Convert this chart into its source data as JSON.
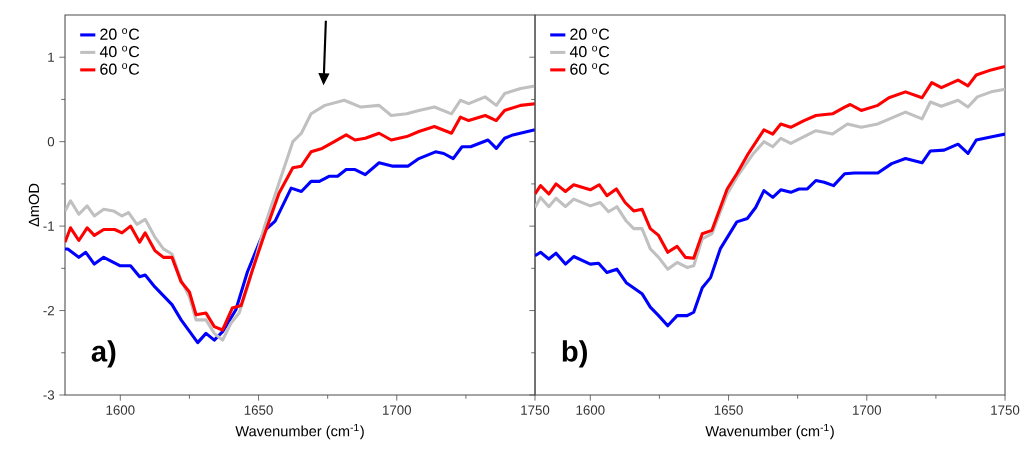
{
  "chart_data": [
    {
      "type": "line",
      "xlabel": "Wavenumber (cm$^{-1}$)",
      "ylabel": "ΔmOD",
      "xlim": [
        1580,
        1750
      ],
      "ylim": [
        -3,
        1.5
      ],
      "xticks": [
        1600,
        1650,
        1700,
        1750
      ],
      "yticks": [
        -3,
        -2,
        -1,
        0,
        1
      ],
      "legend": "top left",
      "annotations": [
        "a)"
      ],
      "series": [
        {
          "name": "20 $^{o}$C",
          "color": "#0000ff",
          "x": [
            1580,
            1581,
            1585,
            1587.5,
            1590.6,
            1594,
            1600,
            1603.7,
            1607,
            1609,
            1612.5,
            1618.7,
            1622,
            1628,
            1631,
            1634,
            1637,
            1641.8,
            1646,
            1652,
            1656,
            1661.8,
            1665.5,
            1669,
            1672,
            1675.5,
            1678.6,
            1681.7,
            1684.9,
            1688.6,
            1693.6,
            1698.6,
            1704,
            1708,
            1714,
            1717,
            1720.4,
            1723.6,
            1726.7,
            1733,
            1736,
            1739,
            1742,
            1750
          ],
          "values": [
            -1.27,
            -1.27,
            -1.37,
            -1.31,
            -1.45,
            -1.37,
            -1.47,
            -1.47,
            -1.6,
            -1.58,
            -1.72,
            -1.93,
            -2.11,
            -2.38,
            -2.27,
            -2.35,
            -2.25,
            -1.99,
            -1.54,
            -1.06,
            -0.94,
            -0.55,
            -0.59,
            -0.47,
            -0.47,
            -0.41,
            -0.41,
            -0.33,
            -0.33,
            -0.39,
            -0.25,
            -0.29,
            -0.29,
            -0.2,
            -0.12,
            -0.14,
            -0.2,
            -0.06,
            -0.06,
            0.02,
            -0.08,
            0.04,
            0.08,
            0.14
          ]
        },
        {
          "name": "40 $^{o}$C",
          "color": "#c0c0c0",
          "x": [
            1580,
            1582,
            1585,
            1588,
            1590.6,
            1594,
            1597.5,
            1600.6,
            1603,
            1606,
            1609,
            1612.5,
            1615.6,
            1618.7,
            1622,
            1625,
            1627.4,
            1631,
            1634,
            1637,
            1640,
            1643,
            1646.8,
            1652,
            1657.4,
            1662.4,
            1665.5,
            1669,
            1674,
            1681,
            1687,
            1693.6,
            1698,
            1703.6,
            1708,
            1713.6,
            1719.8,
            1723,
            1726,
            1732,
            1736,
            1739,
            1744.8,
            1750
          ],
          "values": [
            -0.82,
            -0.7,
            -0.86,
            -0.76,
            -0.88,
            -0.8,
            -0.82,
            -0.88,
            -0.84,
            -0.98,
            -0.92,
            -1.13,
            -1.27,
            -1.33,
            -1.64,
            -1.84,
            -2.11,
            -2.11,
            -2.27,
            -2.35,
            -2.15,
            -2.03,
            -1.64,
            -1.02,
            -0.49,
            0.0,
            0.1,
            0.33,
            0.43,
            0.49,
            0.41,
            0.43,
            0.31,
            0.33,
            0.37,
            0.41,
            0.33,
            0.49,
            0.45,
            0.53,
            0.43,
            0.57,
            0.63,
            0.66
          ]
        },
        {
          "name": "60 $^{o}$C",
          "color": "#ff0000",
          "x": [
            1580,
            1582,
            1585,
            1588,
            1590.6,
            1594,
            1598,
            1600.6,
            1603.7,
            1607,
            1609,
            1612.5,
            1615.6,
            1618.7,
            1622,
            1625,
            1627.4,
            1631,
            1634,
            1637,
            1640.5,
            1643.7,
            1647.4,
            1652,
            1657.4,
            1662.4,
            1665.5,
            1669,
            1673,
            1677.4,
            1681.7,
            1684.9,
            1688.6,
            1693.6,
            1698,
            1703.6,
            1708,
            1713.6,
            1719.8,
            1723,
            1726,
            1732,
            1736,
            1739,
            1744.8,
            1750
          ],
          "values": [
            -1.19,
            -1.02,
            -1.17,
            -1.02,
            -1.11,
            -1.04,
            -1.04,
            -1.08,
            -1.0,
            -1.19,
            -1.08,
            -1.29,
            -1.37,
            -1.37,
            -1.66,
            -1.78,
            -2.05,
            -2.03,
            -2.19,
            -2.23,
            -1.97,
            -1.94,
            -1.56,
            -1.11,
            -0.61,
            -0.31,
            -0.29,
            -0.12,
            -0.08,
            0.0,
            0.08,
            0.02,
            0.04,
            0.1,
            0.02,
            0.06,
            0.12,
            0.18,
            0.1,
            0.29,
            0.25,
            0.31,
            0.25,
            0.37,
            0.43,
            0.45
          ]
        }
      ]
    },
    {
      "type": "line",
      "xlabel": "Wavenumber (cm$^{-1}$)",
      "xlim": [
        1580,
        1750
      ],
      "ylim": [
        -3,
        1.5
      ],
      "xticks": [
        1600,
        1650,
        1700,
        1750
      ],
      "yticks": [
        -3,
        -2,
        -1,
        0,
        1
      ],
      "tick_labels": "x",
      "legend": "top left",
      "annotations": [
        "b)"
      ],
      "series": [
        {
          "name": "20 $^{o}$C",
          "color": "#0000ff",
          "x": [
            1580,
            1582,
            1585,
            1587.6,
            1591,
            1594,
            1600,
            1603,
            1606,
            1609.6,
            1613,
            1618.7,
            1621.7,
            1624.7,
            1628,
            1631.4,
            1635,
            1637.4,
            1640.5,
            1643.5,
            1647,
            1653,
            1656.8,
            1659.8,
            1662.8,
            1666,
            1668.9,
            1672.5,
            1675.5,
            1678.5,
            1681.6,
            1684.6,
            1688,
            1692,
            1695.5,
            1704,
            1709,
            1714,
            1720,
            1723,
            1728,
            1733,
            1736.6,
            1739.6,
            1745.7,
            1750
          ],
          "values": [
            -1.35,
            -1.31,
            -1.39,
            -1.32,
            -1.45,
            -1.36,
            -1.45,
            -1.44,
            -1.55,
            -1.51,
            -1.67,
            -1.8,
            -1.96,
            -2.06,
            -2.18,
            -2.06,
            -2.06,
            -2.02,
            -1.73,
            -1.61,
            -1.27,
            -0.95,
            -0.91,
            -0.78,
            -0.58,
            -0.66,
            -0.57,
            -0.6,
            -0.56,
            -0.56,
            -0.46,
            -0.48,
            -0.52,
            -0.38,
            -0.37,
            -0.37,
            -0.26,
            -0.2,
            -0.25,
            -0.11,
            -0.1,
            -0.03,
            -0.14,
            0.02,
            0.06,
            0.09
          ]
        },
        {
          "name": "40 $^{o}$C",
          "color": "#c0c0c0",
          "x": [
            1580,
            1582,
            1585,
            1587.6,
            1591,
            1594,
            1600,
            1603.6,
            1606.6,
            1609.6,
            1613,
            1615.7,
            1618.7,
            1621.7,
            1624.7,
            1628,
            1631.4,
            1635,
            1637.4,
            1640.5,
            1644,
            1649.5,
            1653,
            1659,
            1662.8,
            1666,
            1668.9,
            1672.5,
            1677.3,
            1681.6,
            1687.6,
            1693,
            1698,
            1704,
            1709,
            1714,
            1720,
            1723,
            1727,
            1733,
            1736.6,
            1740,
            1745,
            1750
          ],
          "values": [
            -0.78,
            -0.66,
            -0.77,
            -0.67,
            -0.77,
            -0.68,
            -0.76,
            -0.72,
            -0.83,
            -0.77,
            -0.94,
            -1.03,
            -1.03,
            -1.27,
            -1.37,
            -1.51,
            -1.43,
            -1.49,
            -1.47,
            -1.15,
            -1.09,
            -0.62,
            -0.42,
            -0.14,
            0.0,
            -0.06,
            0.04,
            -0.02,
            0.06,
            0.13,
            0.09,
            0.21,
            0.17,
            0.21,
            0.28,
            0.35,
            0.27,
            0.47,
            0.42,
            0.49,
            0.41,
            0.53,
            0.59,
            0.62
          ]
        },
        {
          "name": "60 $^{o}$C",
          "color": "#ff0000",
          "x": [
            1580,
            1582,
            1585,
            1587.6,
            1591,
            1594,
            1600,
            1603.2,
            1606,
            1609.4,
            1612.6,
            1615.7,
            1618.7,
            1621.7,
            1624.7,
            1628,
            1631.4,
            1634.4,
            1637.4,
            1640.5,
            1644,
            1649.5,
            1653,
            1656.8,
            1662.8,
            1666,
            1668.9,
            1672.5,
            1677.3,
            1681.6,
            1687.6,
            1692,
            1694,
            1698,
            1704,
            1708,
            1714,
            1720,
            1723.5,
            1727,
            1733,
            1736.6,
            1739.6,
            1745,
            1750
          ],
          "values": [
            -0.62,
            -0.52,
            -0.62,
            -0.5,
            -0.59,
            -0.51,
            -0.57,
            -0.51,
            -0.64,
            -0.56,
            -0.72,
            -0.82,
            -0.8,
            -1.03,
            -1.11,
            -1.31,
            -1.24,
            -1.37,
            -1.38,
            -1.09,
            -1.05,
            -0.56,
            -0.38,
            -0.16,
            0.14,
            0.09,
            0.21,
            0.17,
            0.25,
            0.31,
            0.33,
            0.41,
            0.44,
            0.37,
            0.43,
            0.52,
            0.59,
            0.52,
            0.7,
            0.64,
            0.73,
            0.66,
            0.79,
            0.85,
            0.89
          ]
        }
      ]
    }
  ]
}
